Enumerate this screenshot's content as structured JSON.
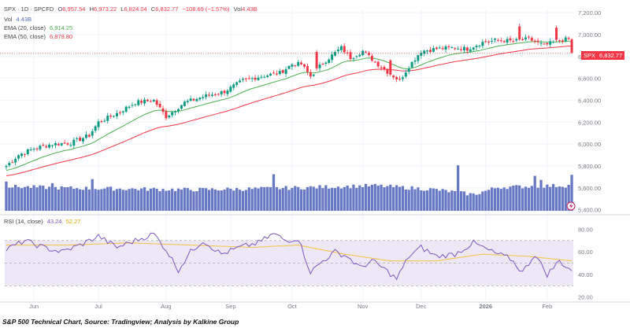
{
  "header": {
    "symbol": "SPX",
    "interval": "1D",
    "exchange": "SPCFD",
    "open_label": "O",
    "open": "6,957.54",
    "high_label": "H",
    "high": "6,973.22",
    "low_label": "L",
    "low": "6,824.04",
    "close_label": "C",
    "close": "6,832.77",
    "change": "−108.69 (−1.57%)",
    "vol_label": "Vol",
    "vol": "4.43B"
  },
  "legend": {
    "row1": "SPX · 1D · SPCFD",
    "vol_label": "Vol",
    "vol_value": "4.43B",
    "ema20_label": "EMA (20, close)",
    "ema20_value": "6,914.25",
    "ema50_label": "EMA (50, close)",
    "ema50_value": "6,879.80",
    "rsi_label": "RSI (14, close)",
    "rsi_value": "43.24",
    "rsi_ma_value": "52.27"
  },
  "price_badge": {
    "symbol": "SPX",
    "value": "6,832.77"
  },
  "caption": "S&P 500 Technical Chart, Source: Tradingview; Analysis by Kalkine Group",
  "colors": {
    "up": "#089981",
    "down": "#f23645",
    "volume": "#5b6ebf",
    "ema20": "#4caf50",
    "ema50": "#f23645",
    "rsi": "#7e57c2",
    "rsi_ma": "#f5c242",
    "rsi_band": "#ede7f6",
    "grid": "#f0f3fa",
    "axis_text": "#787b86"
  },
  "chart_data": {
    "type": "candlestick",
    "price_axis": {
      "ticks": [
        5400,
        5600,
        5800,
        6000,
        6200,
        6400,
        6600,
        6800,
        7000,
        7200
      ],
      "tick_labels": [
        "5,400.00",
        "5,600.00",
        "5,800.00",
        "6,000.00",
        "6,200.00",
        "6,400.00",
        "6,600.00",
        "6,800.00",
        "7,000.00",
        "7,200.00"
      ],
      "ylim": [
        5390,
        7230
      ]
    },
    "rsi_axis": {
      "ticks": [
        20,
        40,
        60,
        80
      ],
      "tick_labels": [
        "20.00",
        "40.00",
        "60.00",
        "80.00"
      ],
      "ylim": [
        17,
        88
      ],
      "band": [
        30,
        70
      ]
    },
    "x_labels": [
      {
        "label": "Jun",
        "day": 9
      },
      {
        "label": "Jul",
        "day": 30
      },
      {
        "label": "Aug",
        "day": 52
      },
      {
        "label": "Sep",
        "day": 73
      },
      {
        "label": "Oct",
        "day": 93
      },
      {
        "label": "Nov",
        "day": 116
      },
      {
        "label": "Dec",
        "day": 135
      },
      {
        "label": "2026",
        "day": 156
      },
      {
        "label": "Feb",
        "day": 176
      }
    ],
    "days": 185,
    "close_anchors": [
      [
        0,
        5800
      ],
      [
        4,
        5900
      ],
      [
        9,
        5960
      ],
      [
        15,
        6000
      ],
      [
        21,
        6010
      ],
      [
        27,
        6080
      ],
      [
        30,
        6200
      ],
      [
        36,
        6280
      ],
      [
        42,
        6380
      ],
      [
        48,
        6400
      ],
      [
        52,
        6250
      ],
      [
        58,
        6380
      ],
      [
        65,
        6440
      ],
      [
        71,
        6480
      ],
      [
        77,
        6580
      ],
      [
        83,
        6620
      ],
      [
        89,
        6650
      ],
      [
        93,
        6730
      ],
      [
        96,
        6730
      ],
      [
        99,
        6620
      ],
      [
        103,
        6740
      ],
      [
        109,
        6880
      ],
      [
        112,
        6790
      ],
      [
        116,
        6850
      ],
      [
        120,
        6750
      ],
      [
        124,
        6660
      ],
      [
        128,
        6580
      ],
      [
        131,
        6710
      ],
      [
        135,
        6850
      ],
      [
        140,
        6870
      ],
      [
        146,
        6880
      ],
      [
        150,
        6870
      ],
      [
        155,
        6930
      ],
      [
        160,
        6950
      ],
      [
        165,
        6940
      ],
      [
        170,
        6960
      ],
      [
        175,
        6900
      ],
      [
        180,
        6950
      ],
      [
        183,
        6958
      ],
      [
        184,
        6833
      ]
    ],
    "big_down_days": [
      {
        "day": 101,
        "drop": 150
      },
      {
        "day": 125,
        "drop": 130
      },
      {
        "day": 167,
        "drop": 120
      },
      {
        "day": 179,
        "drop": 110
      },
      {
        "day": 184,
        "drop": 125
      }
    ],
    "volume_anchors": [
      [
        0,
        3.0
      ],
      [
        20,
        2.8
      ],
      [
        40,
        2.7
      ],
      [
        60,
        2.6
      ],
      [
        80,
        2.7
      ],
      [
        100,
        2.9
      ],
      [
        120,
        3.1
      ],
      [
        140,
        2.6
      ],
      [
        152,
        2.0
      ],
      [
        160,
        2.9
      ],
      [
        180,
        3.1
      ]
    ],
    "volume_spikes": [
      {
        "day": 0,
        "value": 3.6
      },
      {
        "day": 15,
        "value": 3.4
      },
      {
        "day": 28,
        "value": 3.9
      },
      {
        "day": 87,
        "value": 4.5
      },
      {
        "day": 147,
        "value": 5.6
      },
      {
        "day": 172,
        "value": 4.3
      },
      {
        "day": 174,
        "value": 3.8
      },
      {
        "day": 184,
        "value": 4.43
      }
    ],
    "rsi_anchors": [
      [
        0,
        62
      ],
      [
        6,
        70
      ],
      [
        12,
        64
      ],
      [
        18,
        60
      ],
      [
        24,
        66
      ],
      [
        30,
        74
      ],
      [
        36,
        64
      ],
      [
        42,
        70
      ],
      [
        48,
        76
      ],
      [
        52,
        62
      ],
      [
        56,
        44
      ],
      [
        60,
        60
      ],
      [
        64,
        70
      ],
      [
        70,
        58
      ],
      [
        76,
        64
      ],
      [
        82,
        68
      ],
      [
        87,
        76
      ],
      [
        91,
        70
      ],
      [
        95,
        72
      ],
      [
        99,
        42
      ],
      [
        103,
        52
      ],
      [
        107,
        60
      ],
      [
        111,
        56
      ],
      [
        115,
        46
      ],
      [
        119,
        52
      ],
      [
        123,
        45
      ],
      [
        127,
        36
      ],
      [
        131,
        56
      ],
      [
        135,
        64
      ],
      [
        140,
        56
      ],
      [
        146,
        58
      ],
      [
        152,
        68
      ],
      [
        158,
        60
      ],
      [
        164,
        54
      ],
      [
        168,
        42
      ],
      [
        172,
        58
      ],
      [
        176,
        40
      ],
      [
        180,
        52
      ],
      [
        184,
        43
      ]
    ],
    "rsi_ma_anchors": [
      [
        0,
        66
      ],
      [
        20,
        66
      ],
      [
        40,
        68
      ],
      [
        60,
        66
      ],
      [
        80,
        64
      ],
      [
        95,
        66
      ],
      [
        110,
        58
      ],
      [
        125,
        52
      ],
      [
        140,
        52
      ],
      [
        155,
        58
      ],
      [
        170,
        56
      ],
      [
        184,
        52
      ]
    ],
    "last_close": 6832.77
  }
}
